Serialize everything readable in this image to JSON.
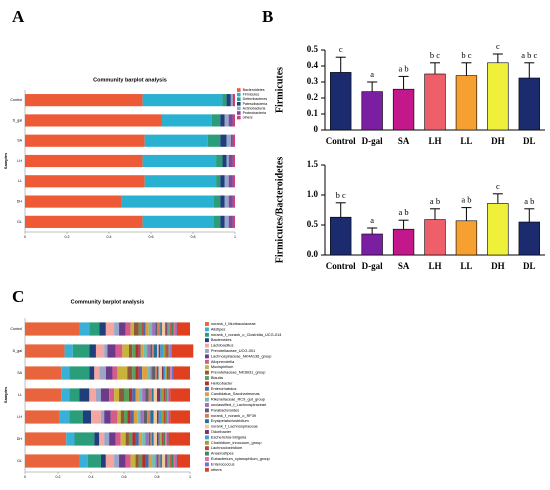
{
  "chart_data": [
    {
      "type": "barh",
      "panel": "A",
      "title": "Community barplot analysis",
      "ylabel": "Samples",
      "categories": [
        "Control",
        "D_gal",
        "SA",
        "LH",
        "LL",
        "DH",
        "DL"
      ],
      "xlim": [
        0,
        1
      ],
      "xticks": [
        0,
        0.2,
        0.4,
        0.6,
        0.8,
        1
      ],
      "series": [
        {
          "name": "Bacteroidetes",
          "color": "#ee5a36",
          "values": [
            0.56,
            0.65,
            0.57,
            0.56,
            0.57,
            0.46,
            0.56
          ]
        },
        {
          "name": "Firmicutes",
          "color": "#2ab0d0",
          "values": [
            0.38,
            0.24,
            0.3,
            0.35,
            0.34,
            0.44,
            0.34
          ]
        },
        {
          "name": "Deferribacteres",
          "color": "#2a9d7a",
          "values": [
            0.02,
            0.04,
            0.06,
            0.03,
            0.02,
            0.03,
            0.03
          ]
        },
        {
          "name": "Patescibacteria",
          "color": "#1f3f7a",
          "values": [
            0.02,
            0.02,
            0.03,
            0.02,
            0.02,
            0.02,
            0.02
          ]
        },
        {
          "name": "Actinobacteria",
          "color": "#9aa6c8",
          "values": [
            0.01,
            0.02,
            0.02,
            0.01,
            0.02,
            0.02,
            0.02
          ]
        },
        {
          "name": "Proteobacteria",
          "color": "#7a4a9a",
          "values": [
            0.005,
            0.02,
            0.01,
            0.02,
            0.02,
            0.02,
            0.02
          ]
        },
        {
          "name": "others",
          "color": "#d04070",
          "values": [
            0.005,
            0.01,
            0.01,
            0.01,
            0.01,
            0.01,
            0.01
          ]
        }
      ]
    },
    {
      "type": "bar",
      "panel": "B",
      "ylabel": "Firmicutes",
      "categories": [
        "Control",
        "D-gal",
        "SA",
        "LH",
        "LL",
        "DH",
        "DL"
      ],
      "values": [
        0.36,
        0.24,
        0.255,
        0.35,
        0.34,
        0.42,
        0.325
      ],
      "errors": [
        0.095,
        0.06,
        0.08,
        0.07,
        0.08,
        0.055,
        0.095
      ],
      "annotations": [
        "c",
        "a",
        "a b",
        "b c",
        "b c",
        "c",
        "a b c"
      ],
      "colors": [
        "#1c2a6e",
        "#7b1fa2",
        "#c2188b",
        "#ef5f6a",
        "#f5a030",
        "#eef03a",
        "#1c2a6e"
      ],
      "ylim": [
        0,
        0.5
      ],
      "yticks": [
        0,
        0.1,
        0.2,
        0.3,
        0.4,
        0.5
      ]
    },
    {
      "type": "bar",
      "ylabel": "Firmicutes/Bacteroidetes",
      "categories": [
        "Control",
        "D-gal",
        "SA",
        "LH",
        "LL",
        "DH",
        "DL"
      ],
      "values": [
        0.63,
        0.35,
        0.43,
        0.59,
        0.57,
        0.86,
        0.55
      ],
      "errors": [
        0.24,
        0.1,
        0.15,
        0.18,
        0.22,
        0.16,
        0.22
      ],
      "annotations": [
        "b c",
        "a",
        "a b",
        "a b",
        "a b",
        "c",
        "a b"
      ],
      "colors": [
        "#1c2a6e",
        "#7b1fa2",
        "#c2188b",
        "#ef5f6a",
        "#f5a030",
        "#eef03a",
        "#1c2a6e"
      ],
      "ylim": [
        0,
        1.5
      ],
      "yticks": [
        {
          "value": 0,
          "label": "0.0"
        },
        0.5,
        {
          "value": 1,
          "label": "1.0"
        },
        1.5
      ]
    },
    {
      "type": "barh",
      "panel": "C",
      "title": "Community barplot analysis",
      "ylabel": "Samples",
      "categories": [
        "Control",
        "D_gal",
        "SA",
        "LL",
        "LH",
        "DH",
        "DL"
      ],
      "xlim": [
        0,
        1
      ],
      "xticks": [
        0,
        0.2,
        0.4,
        0.6,
        0.8,
        1
      ],
      "series": [
        {
          "name": "norank_f_Muribaculaceae",
          "color": "#e8643c",
          "values": [
            0.33,
            0.24,
            0.22,
            0.22,
            0.21,
            0.25,
            0.33
          ]
        },
        {
          "name": "Alistipes",
          "color": "#3ab0d8",
          "values": [
            0.06,
            0.05,
            0.05,
            0.05,
            0.06,
            0.05,
            0.05
          ]
        },
        {
          "name": "norank_f_norank_o_Clostridia_UCG-014",
          "color": "#2a9d7a",
          "values": [
            0.06,
            0.1,
            0.12,
            0.06,
            0.08,
            0.12,
            0.08
          ]
        },
        {
          "name": "Bacteroides",
          "color": "#1f3f7a",
          "values": [
            0.04,
            0.04,
            0.03,
            0.06,
            0.05,
            0.03,
            0.03
          ]
        },
        {
          "name": "Lactobacillus",
          "color": "#f4a6a0",
          "values": [
            0.05,
            0.05,
            0.03,
            0.04,
            0.06,
            0.03,
            0.05
          ]
        },
        {
          "name": "Prevotellaceae_UCG-001",
          "color": "#9aa6c8",
          "values": [
            0.03,
            0.02,
            0.04,
            0.03,
            0.02,
            0.03,
            0.03
          ]
        },
        {
          "name": "Lachnospiraceae_NK4A136_group",
          "color": "#6b3a8a",
          "values": [
            0.04,
            0.05,
            0.04,
            0.05,
            0.04,
            0.04,
            0.04
          ]
        },
        {
          "name": "Alloprevotella",
          "color": "#d65a8a",
          "values": [
            0.03,
            0.04,
            0.03,
            0.03,
            0.04,
            0.03,
            0.03
          ]
        },
        {
          "name": "Mucispirillum",
          "color": "#c8b43a",
          "values": [
            0.02,
            0.04,
            0.06,
            0.03,
            0.02,
            0.03,
            0.03
          ]
        },
        {
          "name": "Prevotellaceae_NK3B31_group",
          "color": "#8c5a3a",
          "values": [
            0.03,
            0.02,
            0.03,
            0.03,
            0.02,
            0.02,
            0.02
          ]
        },
        {
          "name": "Blautia",
          "color": "#5aa05a",
          "values": [
            0.02,
            0.02,
            0.02,
            0.03,
            0.02,
            0.02,
            0.02
          ]
        },
        {
          "name": "Helicobacter",
          "color": "#b03030",
          "values": [
            0.01,
            0.02,
            0.02,
            0.02,
            0.02,
            0.02,
            0.02
          ]
        },
        {
          "name": "Enterorhabdus",
          "color": "#4a6ab0",
          "values": [
            0.01,
            0.01,
            0.02,
            0.02,
            0.02,
            0.02,
            0.02
          ]
        },
        {
          "name": "Candidatus_Saccharimonas",
          "color": "#e0a040",
          "values": [
            0.02,
            0.02,
            0.03,
            0.02,
            0.02,
            0.02,
            0.02
          ]
        },
        {
          "name": "Rikenellaceae_RC9_gut_group",
          "color": "#70c0b0",
          "values": [
            0.02,
            0.02,
            0.02,
            0.02,
            0.02,
            0.02,
            0.02
          ]
        },
        {
          "name": "unclassified_f_Lachnospiraceae",
          "color": "#a070c0",
          "values": [
            0.02,
            0.02,
            0.01,
            0.02,
            0.02,
            0.02,
            0.01
          ]
        },
        {
          "name": "Parabacteroides",
          "color": "#606060",
          "values": [
            0.01,
            0.01,
            0.02,
            0.02,
            0.02,
            0.01,
            0.01
          ]
        },
        {
          "name": "norank_f_norank_o_RF39",
          "color": "#d08060",
          "values": [
            0.02,
            0.01,
            0.01,
            0.02,
            0.02,
            0.01,
            0.01
          ]
        },
        {
          "name": "Erysipelatoclostridium",
          "color": "#2070a0",
          "values": [
            0.01,
            0.02,
            0.01,
            0.01,
            0.02,
            0.01,
            0.01
          ]
        },
        {
          "name": "norank_f_Lachnospiraceae",
          "color": "#f0c8a0",
          "values": [
            0.02,
            0.01,
            0.02,
            0.02,
            0.02,
            0.02,
            0.02
          ]
        },
        {
          "name": "Odoribacter",
          "color": "#803060",
          "values": [
            0.01,
            0.01,
            0.01,
            0.02,
            0.01,
            0.01,
            0.01
          ]
        },
        {
          "name": "Escherichia-Shigella",
          "color": "#40a0d0",
          "values": [
            0.01,
            0.02,
            0.01,
            0.01,
            0.02,
            0.01,
            0.01
          ]
        },
        {
          "name": "Clostridium_innocuum_group",
          "color": "#a0a030",
          "values": [
            0.01,
            0.01,
            0.01,
            0.01,
            0.01,
            0.01,
            0.01
          ]
        },
        {
          "name": "Lachnoclostridium",
          "color": "#c04040",
          "values": [
            0.01,
            0.01,
            0.01,
            0.01,
            0.01,
            0.01,
            0.01
          ]
        },
        {
          "name": "Anaerostipes",
          "color": "#3a8a5a",
          "values": [
            0.01,
            0.01,
            0.01,
            0.01,
            0.01,
            0.01,
            0.01
          ]
        },
        {
          "name": "Eubacterium_xylanophilum_group",
          "color": "#e070a0",
          "values": [
            0.01,
            0.01,
            0.01,
            0.01,
            0.01,
            0.01,
            0.01
          ]
        },
        {
          "name": "Enterococcus",
          "color": "#7070d0",
          "values": [
            0.01,
            0.01,
            0.01,
            0.01,
            0.01,
            0.01,
            0.01
          ]
        },
        {
          "name": "others",
          "color": "#e04020",
          "values": [
            0.08,
            0.13,
            0.1,
            0.12,
            0.12,
            0.13,
            0.08
          ]
        }
      ]
    }
  ]
}
